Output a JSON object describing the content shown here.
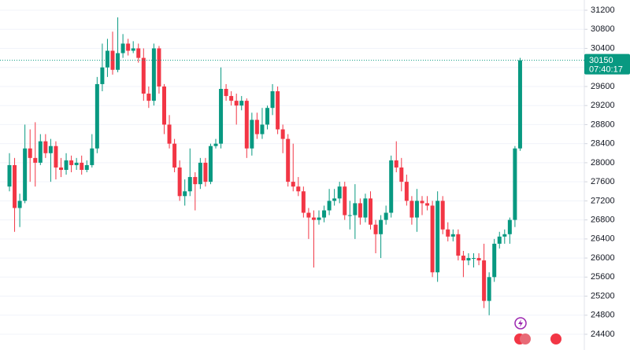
{
  "chart_data": {
    "type": "candlestick",
    "open": [
      27500,
      27950,
      27050,
      27200,
      28300,
      28100,
      28000,
      28450,
      28200,
      28350,
      27900,
      27850,
      28050,
      27950,
      28000,
      27850,
      27950,
      28300,
      29650,
      30000,
      30350,
      29950,
      30300,
      30500,
      30350,
      30400,
      30200,
      29450,
      29300,
      30400,
      29600,
      28800,
      28400,
      27900,
      27300,
      27400,
      27700,
      27550,
      28000,
      27600,
      28350,
      28400,
      29550,
      29400,
      29300,
      29200,
      29300,
      28300,
      28900,
      28600,
      28800,
      29150,
      29500,
      28700,
      28500,
      27600,
      27500,
      27400,
      26950,
      26850,
      26800,
      26850,
      27000,
      27200,
      27250,
      27500,
      26900,
      26900,
      27150,
      26850,
      27250,
      26700,
      26500,
      26800,
      26950,
      28050,
      27900,
      27600,
      27200,
      26850,
      27200,
      27150,
      27100,
      25700,
      27200,
      26600,
      26450,
      26500,
      26050,
      25950,
      26000,
      26000,
      25950,
      25100,
      25600,
      26300,
      26450,
      26500,
      26800,
      28300
    ],
    "high": [
      28200,
      28100,
      27350,
      28800,
      28700,
      28850,
      28600,
      28600,
      28500,
      28450,
      28100,
      28200,
      28150,
      28100,
      28150,
      28050,
      28600,
      29800,
      30500,
      30600,
      30750,
      31050,
      30700,
      30600,
      30550,
      30500,
      30400,
      29600,
      30500,
      30450,
      29650,
      29000,
      28500,
      28050,
      27650,
      28300,
      27800,
      28100,
      28100,
      28400,
      28500,
      30000,
      29650,
      29500,
      29450,
      29400,
      29350,
      29050,
      29050,
      29150,
      29200,
      29650,
      29600,
      28800,
      28600,
      28400,
      27700,
      27500,
      27050,
      27000,
      27000,
      27100,
      27450,
      27450,
      27600,
      27600,
      27200,
      27550,
      27250,
      27350,
      27400,
      26800,
      26900,
      27100,
      28150,
      28450,
      28100,
      27750,
      27300,
      27450,
      27300,
      27300,
      27200,
      27400,
      27300,
      26750,
      26600,
      26600,
      26150,
      26100,
      26100,
      26100,
      26300,
      25700,
      26400,
      26550,
      26600,
      26850,
      28350,
      30200
    ],
    "low": [
      27400,
      26550,
      26650,
      27150,
      27600,
      27500,
      27950,
      28100,
      27600,
      27650,
      27700,
      27750,
      27800,
      27850,
      27750,
      27800,
      27900,
      28200,
      29500,
      29800,
      29850,
      29900,
      30200,
      30250,
      30300,
      30100,
      29300,
      29150,
      29200,
      29450,
      28600,
      28300,
      27800,
      27200,
      27100,
      27300,
      27000,
      27450,
      27500,
      27550,
      28300,
      28300,
      29300,
      29200,
      28800,
      29100,
      28100,
      28150,
      28500,
      28500,
      28700,
      29000,
      28600,
      28200,
      27500,
      27400,
      27300,
      26850,
      26400,
      25800,
      26700,
      26750,
      26900,
      27100,
      27150,
      26800,
      26600,
      26400,
      26700,
      26750,
      26600,
      26100,
      26000,
      26700,
      26850,
      27800,
      27400,
      27100,
      26700,
      26550,
      26900,
      27000,
      25600,
      25500,
      26500,
      26350,
      26350,
      25950,
      25600,
      25850,
      25800,
      25850,
      24950,
      24800,
      25500,
      26200,
      26300,
      26300,
      26650,
      28250
    ],
    "close": [
      27950,
      27050,
      27200,
      28300,
      28100,
      28000,
      28450,
      28200,
      28350,
      27900,
      27850,
      28050,
      27950,
      28000,
      27850,
      27950,
      28300,
      29650,
      30000,
      30350,
      29950,
      30300,
      30500,
      30350,
      30400,
      30200,
      29450,
      29300,
      30400,
      29600,
      28800,
      28400,
      27900,
      27300,
      27400,
      27700,
      27550,
      28000,
      27600,
      28350,
      28400,
      29550,
      29400,
      29300,
      29200,
      29300,
      28300,
      28900,
      28600,
      28800,
      29150,
      29500,
      28700,
      28500,
      27600,
      27500,
      27400,
      26950,
      26850,
      26800,
      26850,
      27000,
      27200,
      27250,
      27500,
      26900,
      26900,
      27150,
      26850,
      27250,
      26700,
      26500,
      26800,
      26950,
      28050,
      27900,
      27600,
      27200,
      26850,
      27200,
      27150,
      27100,
      25700,
      27200,
      26600,
      26450,
      26500,
      26050,
      25950,
      26000,
      26000,
      25950,
      25100,
      25600,
      26300,
      26450,
      26500,
      26800,
      28300,
      30150
    ],
    "up_color": "#089981",
    "down_color": "#f23645",
    "countdown": "07:40:17",
    "ylim": [
      24070,
      31415
    ],
    "yticks": [
      24400,
      24800,
      25200,
      25600,
      26000,
      26400,
      26800,
      27200,
      27600,
      28000,
      28400,
      28800,
      29200,
      29600,
      30000,
      30400,
      30800,
      31200
    ],
    "grid": true
  }
}
